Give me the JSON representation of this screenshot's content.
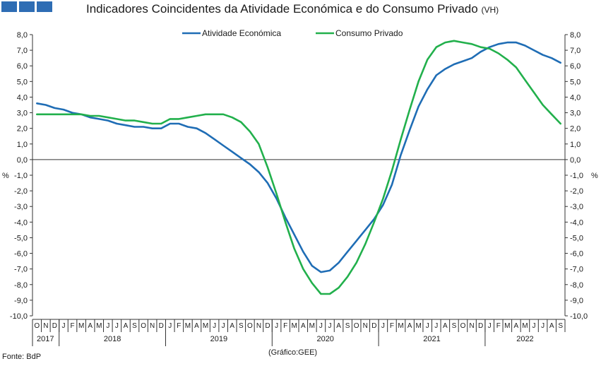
{
  "header": {
    "title": "Indicadores Coincidentes da Atividade Económica e do Consumo Privado",
    "title_suffix": "(VH)"
  },
  "footer": {
    "source": "Fonte: BdP",
    "credit": "(Gráfico:GEE)"
  },
  "chart_data": {
    "type": "line",
    "title": "Indicadores Coincidentes da Atividade Económica e do Consumo Privado (VH)",
    "ylim": [
      -10,
      8
    ],
    "y_ticks": [
      "8,0",
      "7,0",
      "6,0",
      "5,0",
      "4,0",
      "3,0",
      "2,0",
      "1,0",
      "0,0",
      "-1,0",
      "-2,0",
      "-3,0",
      "-4,0",
      "-5,0",
      "-6,0",
      "-7,0",
      "-8,0",
      "-9,0",
      "-10,0"
    ],
    "y_unit_left": "%",
    "y_unit_right": "%",
    "x_months": [
      "O",
      "N",
      "D",
      "J",
      "F",
      "M",
      "A",
      "M",
      "J",
      "J",
      "A",
      "S",
      "O",
      "N",
      "D",
      "J",
      "F",
      "M",
      "A",
      "M",
      "J",
      "J",
      "A",
      "S",
      "O",
      "N",
      "D",
      "J",
      "F",
      "M",
      "A",
      "M",
      "J",
      "J",
      "A",
      "S",
      "O",
      "N",
      "D",
      "J",
      "F",
      "M",
      "A",
      "M",
      "J",
      "J",
      "A",
      "S",
      "O",
      "N",
      "D",
      "J",
      "F",
      "M",
      "A",
      "M",
      "J",
      "J",
      "A",
      "S"
    ],
    "years": [
      {
        "label": "2017",
        "start": 0,
        "end": 2
      },
      {
        "label": "2018",
        "start": 3,
        "end": 14
      },
      {
        "label": "2019",
        "start": 15,
        "end": 26
      },
      {
        "label": "2020",
        "start": 27,
        "end": 38
      },
      {
        "label": "2021",
        "start": 39,
        "end": 50
      },
      {
        "label": "2022",
        "start": 51,
        "end": 59
      }
    ],
    "grid": false,
    "legend_position": "top",
    "series": [
      {
        "name": "Atividade Económica",
        "color": "#1f6db5",
        "values": [
          3.6,
          3.5,
          3.3,
          3.2,
          3.0,
          2.9,
          2.7,
          2.6,
          2.5,
          2.3,
          2.2,
          2.1,
          2.1,
          2.0,
          2.0,
          2.3,
          2.3,
          2.1,
          2.0,
          1.7,
          1.3,
          0.9,
          0.5,
          0.1,
          -0.3,
          -0.8,
          -1.5,
          -2.5,
          -3.7,
          -4.8,
          -5.9,
          -6.8,
          -7.2,
          -7.1,
          -6.6,
          -5.9,
          -5.2,
          -4.5,
          -3.8,
          -2.9,
          -1.6,
          0.3,
          1.9,
          3.4,
          4.5,
          5.4,
          5.8,
          6.1,
          6.3,
          6.5,
          6.9,
          7.2,
          7.4,
          7.5,
          7.5,
          7.3,
          7.0,
          6.7,
          6.5,
          6.2
        ]
      },
      {
        "name": "Consumo Privado",
        "color": "#22b04c",
        "values": [
          2.9,
          2.9,
          2.9,
          2.9,
          2.9,
          2.9,
          2.8,
          2.8,
          2.7,
          2.6,
          2.5,
          2.5,
          2.4,
          2.3,
          2.3,
          2.6,
          2.6,
          2.7,
          2.8,
          2.9,
          2.9,
          2.9,
          2.7,
          2.4,
          1.8,
          1.0,
          -0.5,
          -2.2,
          -4.0,
          -5.7,
          -7.0,
          -7.9,
          -8.6,
          -8.6,
          -8.2,
          -7.5,
          -6.6,
          -5.4,
          -4.0,
          -2.5,
          -0.7,
          1.3,
          3.2,
          5.0,
          6.4,
          7.2,
          7.5,
          7.6,
          7.5,
          7.4,
          7.2,
          7.1,
          6.8,
          6.4,
          5.9,
          5.1,
          4.3,
          3.5,
          2.9,
          2.3
        ]
      }
    ]
  }
}
